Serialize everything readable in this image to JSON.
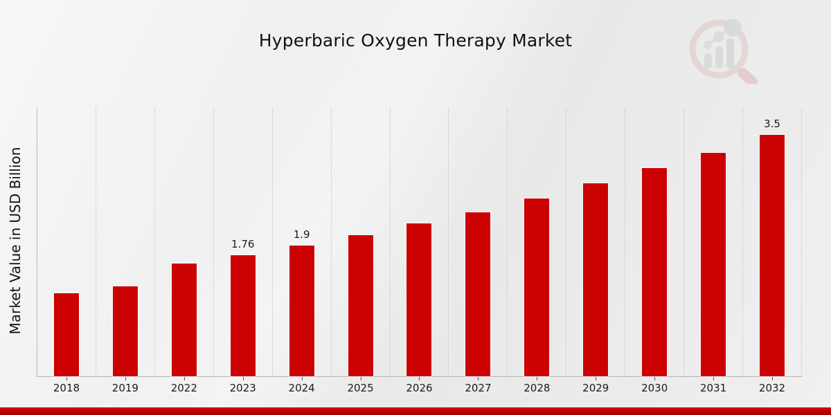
{
  "header": {
    "title": "Hyperbaric Oxygen Therapy Market"
  },
  "chart_data": {
    "type": "bar",
    "title": "Hyperbaric Oxygen Therapy Market",
    "xlabel": "",
    "ylabel": "Market Value in USD Billion",
    "categories": [
      "2018",
      "2019",
      "2022",
      "2023",
      "2024",
      "2025",
      "2026",
      "2027",
      "2028",
      "2029",
      "2030",
      "2031",
      "2032"
    ],
    "values": [
      1.2,
      1.3,
      1.63,
      1.76,
      1.9,
      2.05,
      2.22,
      2.38,
      2.58,
      2.8,
      3.02,
      3.24,
      3.5
    ],
    "labels": [
      "",
      "",
      "",
      "1.76",
      "1.9",
      "",
      "",
      "",
      "",
      "",
      "",
      "",
      "3.5"
    ],
    "ylim": [
      0,
      3.89
    ],
    "bar_color": "#cc0101",
    "grid": "vertical-dotted",
    "legend": "none",
    "y_tick_labels": "none"
  },
  "footer": {
    "accent_color": "#b80202"
  },
  "logo": {
    "name": "magnifier-bar-chart-watermark",
    "ring_color": "#debcbc",
    "bar_color": "#c6c6c6"
  }
}
